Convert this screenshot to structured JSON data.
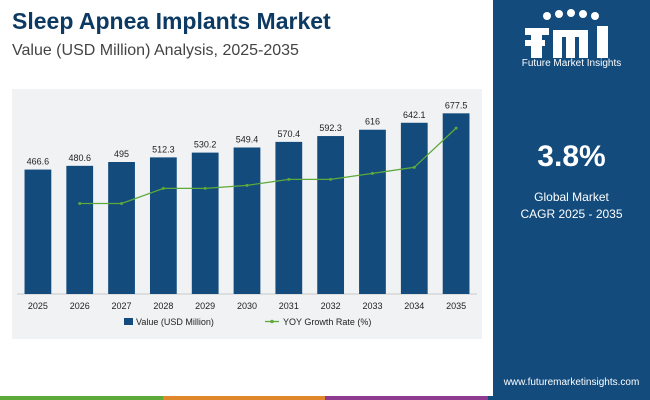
{
  "header": {
    "title": "Sleep Apnea Implants Market",
    "subtitle": "Value (USD Million) Analysis, 2025-2035"
  },
  "sidebar": {
    "logo_text": "Future Market Insights",
    "cagr_value": "3.8%",
    "cagr_label_1": "Global Market",
    "cagr_label_2": "CAGR 2025 - 2035",
    "website": "www.futuremarketinsights.com"
  },
  "colors": {
    "bar": "#124b7c",
    "line": "#5daa3a",
    "sidebar": "#124b7c",
    "bottom_bar": [
      "#5daa3a",
      "#e0862b",
      "#8e3c8f",
      "#124b7c"
    ]
  },
  "chart_data": {
    "type": "bar",
    "title": "Sleep Apnea Implants Market",
    "categories": [
      "2025",
      "2026",
      "2027",
      "2028",
      "2029",
      "2030",
      "2031",
      "2032",
      "2033",
      "2034",
      "2035"
    ],
    "series": [
      {
        "name": "Value (USD Million)",
        "type": "bar",
        "values": [
          466.6,
          480.6,
          495,
          512.3,
          530.2,
          549.4,
          570.4,
          592.3,
          616,
          642.1,
          677.5
        ],
        "labels": [
          "466.6",
          "480.6",
          "495",
          "512.3",
          "530.2",
          "549.4",
          "570.4",
          "592.3",
          "616",
          "642.1",
          "677.5"
        ]
      },
      {
        "name": "YOY Growth Rate (%)",
        "type": "line",
        "values": [
          null,
          3.0,
          3.0,
          3.5,
          3.5,
          3.6,
          3.8,
          3.8,
          4.0,
          4.2,
          5.5
        ]
      }
    ],
    "ylim": [
      0,
      750
    ],
    "xlabel": "",
    "ylabel": "",
    "legend": "bottom-center",
    "grid": false
  }
}
